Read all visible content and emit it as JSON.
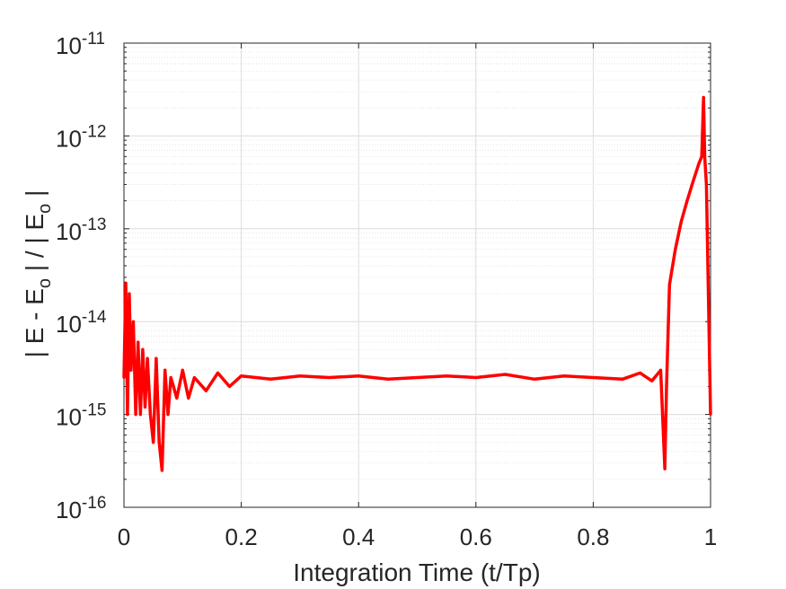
{
  "chart_data": {
    "type": "line",
    "title": "",
    "xlabel": "Integration Time (t/Tp)",
    "ylabel": {
      "parts": [
        "| E - E",
        "o",
        " | / | E",
        "o",
        " |"
      ]
    },
    "xlim": [
      0,
      1
    ],
    "ylim": [
      1e-16,
      1e-11
    ],
    "yscale": "log",
    "grid": true,
    "minor_grid": true,
    "xticks": [
      "0",
      "0.2",
      "0.4",
      "0.6",
      "0.8",
      "1"
    ],
    "yticks": [
      {
        "base": "10",
        "exp": "-16"
      },
      {
        "base": "10",
        "exp": "-15"
      },
      {
        "base": "10",
        "exp": "-14"
      },
      {
        "base": "10",
        "exp": "-13"
      },
      {
        "base": "10",
        "exp": "-12"
      },
      {
        "base": "10",
        "exp": "-11"
      }
    ],
    "series": [
      {
        "color": "#ff0000",
        "x": [
          0.0,
          0.003,
          0.006,
          0.009,
          0.012,
          0.016,
          0.02,
          0.024,
          0.028,
          0.032,
          0.036,
          0.04,
          0.045,
          0.05,
          0.055,
          0.06,
          0.065,
          0.07,
          0.075,
          0.08,
          0.09,
          0.1,
          0.11,
          0.12,
          0.14,
          0.16,
          0.18,
          0.2,
          0.25,
          0.3,
          0.35,
          0.4,
          0.45,
          0.5,
          0.55,
          0.6,
          0.65,
          0.7,
          0.75,
          0.8,
          0.85,
          0.88,
          0.9,
          0.915,
          0.922,
          0.925,
          0.93,
          0.94,
          0.95,
          0.96,
          0.97,
          0.98,
          0.985,
          0.988,
          0.99,
          0.993,
          0.996,
          1.0
        ],
        "y": [
          2.5e-15,
          2.6e-14,
          1e-15,
          2e-14,
          3e-15,
          1e-14,
          1e-15,
          6e-15,
          1e-15,
          5e-15,
          1.2e-15,
          4e-15,
          1e-15,
          5e-16,
          4e-15,
          5e-16,
          2.5e-16,
          3e-15,
          1e-15,
          2.5e-15,
          1.5e-15,
          3e-15,
          1.5e-15,
          2.5e-15,
          1.8e-15,
          2.8e-15,
          2e-15,
          2.6e-15,
          2.4e-15,
          2.6e-15,
          2.5e-15,
          2.6e-15,
          2.4e-15,
          2.5e-15,
          2.6e-15,
          2.5e-15,
          2.7e-15,
          2.4e-15,
          2.6e-15,
          2.5e-15,
          2.4e-15,
          2.8e-15,
          2.3e-15,
          3e-15,
          2.6e-16,
          2e-15,
          2.5e-14,
          6e-14,
          1.2e-13,
          2e-13,
          3.2e-13,
          5e-13,
          6e-13,
          2.6e-12,
          6e-13,
          3e-13,
          2.5e-14,
          1e-15
        ]
      }
    ]
  }
}
